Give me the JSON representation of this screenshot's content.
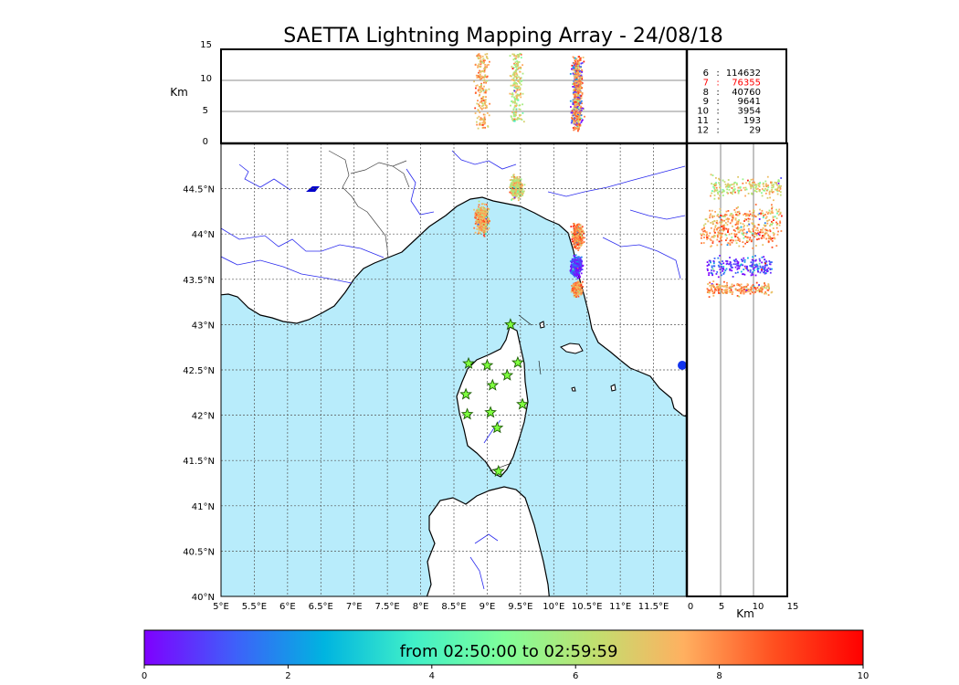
{
  "title": "SAETTA Lightning Mapping Array - 24/08/18",
  "colors": {
    "sea": "#b8ecfb",
    "coast": "#000000",
    "rivers": "#2a2aee",
    "grid": "#555555",
    "station_fill": "#7fff3f",
    "station_stroke": "#1a5a00",
    "highlight_text": "#ff0000"
  },
  "top_panel": {
    "ylabel": "Km",
    "yticks": [
      "0",
      "5",
      "10",
      "15"
    ]
  },
  "right_panel": {
    "xlabel": "Km",
    "xticks": [
      "0",
      "5",
      "10",
      "15"
    ]
  },
  "map": {
    "lon_ticks": [
      "5°E",
      "5.5°E",
      "6°E",
      "6.5°E",
      "7°E",
      "7.5°E",
      "8°E",
      "8.5°E",
      "9°E",
      "9.5°E",
      "10°E",
      "10.5°E",
      "11°E",
      "11.5°E"
    ],
    "lat_ticks": [
      "40°N",
      "40.5°N",
      "41°N",
      "41.5°N",
      "42°N",
      "42.5°N",
      "43°N",
      "43.5°N",
      "44°N",
      "44.5°N"
    ]
  },
  "station_counts": [
    {
      "stations": "6",
      "sources": "114632",
      "highlight": false
    },
    {
      "stations": "7",
      "sources": "76355",
      "highlight": true
    },
    {
      "stations": "8",
      "sources": "40760",
      "highlight": false
    },
    {
      "stations": "9",
      "sources": "9641",
      "highlight": false
    },
    {
      "stations": "10",
      "sources": "3954",
      "highlight": false
    },
    {
      "stations": "11",
      "sources": "193",
      "highlight": false
    },
    {
      "stations": "12",
      "sources": "29",
      "highlight": false
    }
  ],
  "colorbar": {
    "label": "from 02:50:00 to 02:59:59",
    "ticks": [
      "0",
      "2",
      "4",
      "6",
      "8",
      "10"
    ],
    "stops": [
      "#7f00ff",
      "#3f5ffa",
      "#00b4e0",
      "#40f0c8",
      "#80ff9a",
      "#c0e070",
      "#ffb060",
      "#ff5020",
      "#ff0000"
    ]
  },
  "chart_data": {
    "type": "scatter",
    "title": "SAETTA Lightning Mapping Array - 24/08/18",
    "time_range": "from 02:50:00 to 02:59:59",
    "color_scale": {
      "min": 0,
      "max": 10
    },
    "xlim": [
      5,
      12
    ],
    "ylim": [
      40,
      45
    ],
    "altitude_range_km": [
      0,
      15
    ],
    "stations": [
      {
        "lon": 9.35,
        "lat": 43.0
      },
      {
        "lon": 8.72,
        "lat": 42.57
      },
      {
        "lon": 9.0,
        "lat": 42.55
      },
      {
        "lon": 9.46,
        "lat": 42.58
      },
      {
        "lon": 9.3,
        "lat": 42.44
      },
      {
        "lon": 9.08,
        "lat": 42.33
      },
      {
        "lon": 8.68,
        "lat": 42.23
      },
      {
        "lon": 9.53,
        "lat": 42.12
      },
      {
        "lon": 8.7,
        "lat": 42.01
      },
      {
        "lon": 9.05,
        "lat": 42.03
      },
      {
        "lon": 9.15,
        "lat": 41.86
      },
      {
        "lon": 9.17,
        "lat": 41.38
      }
    ],
    "clusters": [
      {
        "lon_min": 8.76,
        "lon_max": 9.06,
        "lat_min": 43.97,
        "lat_max": 44.38,
        "alt_min": 2.5,
        "alt_max": 14.5,
        "color": 7.5
      },
      {
        "lon_min": 9.3,
        "lon_max": 9.56,
        "lat_min": 44.36,
        "lat_max": 44.68,
        "alt_min": 3.5,
        "alt_max": 14.5,
        "color": 6.5
      },
      {
        "lon_min": 10.24,
        "lon_max": 10.46,
        "lat_min": 43.82,
        "lat_max": 44.16,
        "alt_min": 2.0,
        "alt_max": 14.0,
        "color": 8.0
      },
      {
        "lon_min": 10.22,
        "lon_max": 10.44,
        "lat_min": 43.5,
        "lat_max": 43.8,
        "alt_min": 3.0,
        "alt_max": 13.0,
        "color": 0.8
      },
      {
        "lon_min": 10.24,
        "lon_max": 10.44,
        "lat_min": 43.3,
        "lat_max": 43.5,
        "alt_min": 3.0,
        "alt_max": 13.0,
        "color": 7.8
      }
    ]
  }
}
